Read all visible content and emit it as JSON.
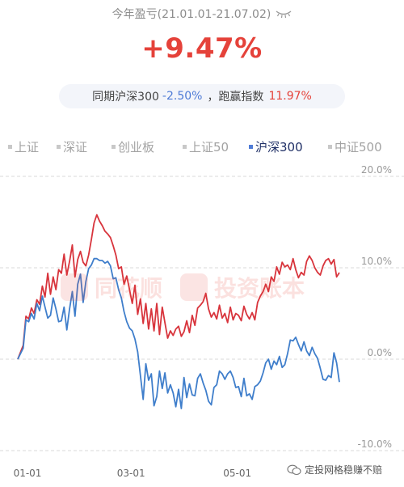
{
  "header": {
    "period_label": "今年盈亏(21.01.01-21.07.02)",
    "return_value": "+9.47%",
    "compare_prefix": "同期沪深300",
    "compare_index_value": "-2.50%",
    "compare_suffix": "，跑赢指数",
    "outperform_value": "11.97%"
  },
  "tabs": [
    {
      "label": "上证",
      "active": false
    },
    {
      "label": "深证",
      "active": false
    },
    {
      "label": "创业板",
      "active": false
    },
    {
      "label": "上证50",
      "active": false
    },
    {
      "label": "沪深300",
      "active": true
    },
    {
      "label": "中证500",
      "active": false
    }
  ],
  "watermark": {
    "left": "同花顺",
    "right": "投资账本",
    "footer": "定投网格稳赚不赔"
  },
  "colors": {
    "accent_red": "#e5423a",
    "accent_blue": "#4e7bd6",
    "muted_text": "#8c8c8c"
  },
  "chart_data": {
    "type": "line",
    "xlim": [
      0,
      118
    ],
    "ylim": [
      -10,
      20
    ],
    "yticks": [
      "20.0%",
      "10.0%",
      "0.0%",
      "-10.0%"
    ],
    "ytick_values": [
      20,
      10,
      0,
      -10
    ],
    "xticks": [
      {
        "label": "01-01",
        "x": 0
      },
      {
        "label": "03-01",
        "x": 38
      },
      {
        "label": "05-01",
        "x": 77
      }
    ],
    "grid": true,
    "series": [
      {
        "name": "",
        "color": "#d8343c",
        "values": [
          [
            0,
            0
          ],
          [
            2,
            1.5
          ],
          [
            3,
            4.7
          ],
          [
            4,
            4.4
          ],
          [
            5,
            5.6
          ],
          [
            6,
            5.0
          ],
          [
            7,
            6.5
          ],
          [
            8,
            6.0
          ],
          [
            9,
            8.0
          ],
          [
            10,
            6.8
          ],
          [
            11,
            9.4
          ],
          [
            12,
            7.1
          ],
          [
            13,
            9.0
          ],
          [
            14,
            7.6
          ],
          [
            15,
            9.8
          ],
          [
            16,
            9.4
          ],
          [
            17,
            11.5
          ],
          [
            18,
            9.2
          ],
          [
            19,
            10.7
          ],
          [
            20,
            12.5
          ],
          [
            21,
            9.0
          ],
          [
            22,
            10.9
          ],
          [
            23,
            11.8
          ],
          [
            24,
            10.6
          ],
          [
            25,
            10.2
          ],
          [
            26,
            11.4
          ],
          [
            27,
            13.1
          ],
          [
            28,
            14.9
          ],
          [
            29,
            15.8
          ],
          [
            30,
            15.1
          ],
          [
            31,
            14.6
          ],
          [
            32,
            14.0
          ],
          [
            33,
            13.7
          ],
          [
            34,
            13.3
          ],
          [
            35,
            12.4
          ],
          [
            36,
            11.4
          ],
          [
            37,
            9.9
          ],
          [
            38,
            10.1
          ],
          [
            39,
            8.2
          ],
          [
            40,
            9.1
          ],
          [
            41,
            7.6
          ],
          [
            42,
            6.1
          ],
          [
            43,
            8.1
          ],
          [
            44,
            4.9
          ],
          [
            45,
            6.6
          ],
          [
            46,
            3.9
          ],
          [
            47,
            6.1
          ],
          [
            48,
            3.3
          ],
          [
            49,
            5.5
          ],
          [
            50,
            3.1
          ],
          [
            51,
            6.1
          ],
          [
            52,
            2.7
          ],
          [
            53,
            5.7
          ],
          [
            54,
            4.0
          ],
          [
            55,
            2.3
          ],
          [
            56,
            3.1
          ],
          [
            57,
            2.6
          ],
          [
            58,
            3.3
          ],
          [
            59,
            3.6
          ],
          [
            60,
            2.5
          ],
          [
            61,
            3.0
          ],
          [
            62,
            4.2
          ],
          [
            63,
            2.9
          ],
          [
            64,
            4.8
          ],
          [
            65,
            3.7
          ],
          [
            66,
            5.6
          ],
          [
            67,
            5.9
          ],
          [
            68,
            6.3
          ],
          [
            69,
            7.2
          ],
          [
            70,
            5.5
          ],
          [
            71,
            4.6
          ],
          [
            72,
            5.1
          ],
          [
            73,
            4.4
          ],
          [
            74,
            5.9
          ],
          [
            75,
            4.5
          ],
          [
            76,
            5.0
          ],
          [
            77,
            4.0
          ],
          [
            78,
            5.7
          ],
          [
            79,
            4.3
          ],
          [
            80,
            5.0
          ],
          [
            81,
            4.8
          ],
          [
            82,
            4.2
          ],
          [
            83,
            5.8
          ],
          [
            84,
            4.9
          ],
          [
            85,
            4.4
          ],
          [
            86,
            5.1
          ],
          [
            87,
            4.3
          ],
          [
            88,
            6.2
          ],
          [
            89,
            6.9
          ],
          [
            90,
            7.4
          ],
          [
            91,
            8.2
          ],
          [
            92,
            7.4
          ],
          [
            93,
            9.0
          ],
          [
            94,
            8.5
          ],
          [
            95,
            10.1
          ],
          [
            96,
            9.3
          ],
          [
            97,
            10.6
          ],
          [
            98,
            10.1
          ],
          [
            99,
            10.3
          ],
          [
            100,
            9.8
          ],
          [
            101,
            11.0
          ],
          [
            102,
            9.8
          ],
          [
            103,
            8.9
          ],
          [
            104,
            9.5
          ],
          [
            105,
            9.2
          ],
          [
            106,
            10.7
          ],
          [
            107,
            11.3
          ],
          [
            108,
            10.8
          ],
          [
            109,
            10.0
          ],
          [
            110,
            9.5
          ],
          [
            111,
            9.2
          ],
          [
            112,
            10.2
          ],
          [
            113,
            10.8
          ],
          [
            114,
            11.0
          ],
          [
            115,
            10.4
          ],
          [
            116,
            10.9
          ],
          [
            117,
            9.0
          ],
          [
            118,
            9.47
          ]
        ]
      },
      {
        "name": "",
        "color": "#3f7ecb",
        "values": [
          [
            0,
            0
          ],
          [
            2,
            1.2
          ],
          [
            3,
            4.3
          ],
          [
            4,
            4.1
          ],
          [
            5,
            5.0
          ],
          [
            6,
            4.4
          ],
          [
            7,
            6.1
          ],
          [
            8,
            5.3
          ],
          [
            9,
            6.9
          ],
          [
            10,
            5.7
          ],
          [
            11,
            4.5
          ],
          [
            12,
            4.8
          ],
          [
            13,
            6.7
          ],
          [
            14,
            5.5
          ],
          [
            15,
            4.1
          ],
          [
            16,
            4.2
          ],
          [
            17,
            5.7
          ],
          [
            18,
            3.2
          ],
          [
            19,
            5.5
          ],
          [
            20,
            7.4
          ],
          [
            21,
            4.7
          ],
          [
            22,
            8.2
          ],
          [
            23,
            9.3
          ],
          [
            24,
            6.2
          ],
          [
            25,
            8.5
          ],
          [
            26,
            9.9
          ],
          [
            27,
            10.3
          ],
          [
            28,
            11.0
          ],
          [
            29,
            11.0
          ],
          [
            30,
            10.8
          ],
          [
            31,
            10.8
          ],
          [
            32,
            10.5
          ],
          [
            33,
            10.7
          ],
          [
            34,
            10.2
          ],
          [
            35,
            8.8
          ],
          [
            36,
            8.9
          ],
          [
            37,
            7.6
          ],
          [
            38,
            6.7
          ],
          [
            39,
            5.2
          ],
          [
            40,
            4.1
          ],
          [
            41,
            3.4
          ],
          [
            42,
            3.1
          ],
          [
            43,
            2.2
          ],
          [
            44,
            0.8
          ],
          [
            45,
            -1.8
          ],
          [
            46,
            -4.4
          ],
          [
            47,
            -0.5
          ],
          [
            48,
            -2.3
          ],
          [
            49,
            -1.6
          ],
          [
            50,
            -5.1
          ],
          [
            51,
            -4.1
          ],
          [
            52,
            -1.3
          ],
          [
            53,
            -3.2
          ],
          [
            54,
            -1.5
          ],
          [
            55,
            -3.7
          ],
          [
            56,
            -2.8
          ],
          [
            57,
            -3.7
          ],
          [
            58,
            -5.2
          ],
          [
            59,
            -3.3
          ],
          [
            60,
            -5.4
          ],
          [
            61,
            -2.0
          ],
          [
            62,
            -4.2
          ],
          [
            63,
            -2.7
          ],
          [
            64,
            -3.9
          ],
          [
            65,
            -4.0
          ],
          [
            66,
            -2.1
          ],
          [
            67,
            -1.6
          ],
          [
            68,
            -2.6
          ],
          [
            69,
            -3.4
          ],
          [
            70,
            -4.6
          ],
          [
            71,
            -5.0
          ],
          [
            72,
            -3.1
          ],
          [
            73,
            -2.8
          ],
          [
            74,
            -1.3
          ],
          [
            75,
            -1.6
          ],
          [
            76,
            -2.2
          ],
          [
            77,
            -1.6
          ],
          [
            78,
            -1.3
          ],
          [
            79,
            -2.0
          ],
          [
            80,
            -3.1
          ],
          [
            81,
            -3.0
          ],
          [
            82,
            -4.1
          ],
          [
            83,
            -2.1
          ],
          [
            84,
            -4.0
          ],
          [
            85,
            -3.8
          ],
          [
            86,
            -4.4
          ],
          [
            87,
            -3.0
          ],
          [
            88,
            -2.8
          ],
          [
            89,
            -2.4
          ],
          [
            90,
            -1.5
          ],
          [
            91,
            -0.4
          ],
          [
            92,
            0.0
          ],
          [
            93,
            -1.1
          ],
          [
            94,
            -0.2
          ],
          [
            95,
            -0.6
          ],
          [
            96,
            0.3
          ],
          [
            97,
            -0.9
          ],
          [
            98,
            -0.6
          ],
          [
            99,
            0.6
          ],
          [
            100,
            2.1
          ],
          [
            101,
            2.0
          ],
          [
            102,
            2.4
          ],
          [
            103,
            1.6
          ],
          [
            104,
            0.9
          ],
          [
            105,
            1.9
          ],
          [
            106,
            0.9
          ],
          [
            107,
            0.4
          ],
          [
            108,
            1.3
          ],
          [
            109,
            0.6
          ],
          [
            110,
            0.1
          ],
          [
            111,
            -1.0
          ],
          [
            112,
            -2.2
          ],
          [
            113,
            -2.3
          ],
          [
            114,
            -1.8
          ],
          [
            115,
            -2.0
          ],
          [
            116,
            0.7
          ],
          [
            117,
            -0.4
          ],
          [
            118,
            -2.5
          ]
        ]
      }
    ]
  }
}
